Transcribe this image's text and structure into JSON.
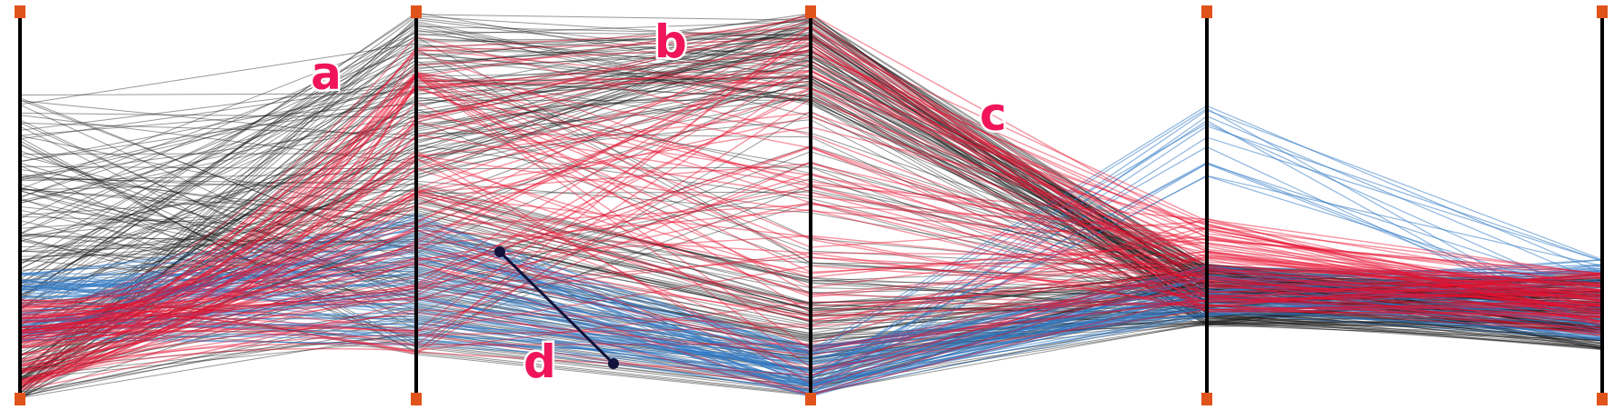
{
  "chart_data": {
    "type": "parallel_coordinates",
    "axes": [
      {
        "label": ""
      },
      {
        "label": ""
      },
      {
        "label": ""
      },
      {
        "label": ""
      },
      {
        "label": ""
      }
    ],
    "series": [
      {
        "color": "#1a1a1a"
      },
      {
        "color": "#e8102e"
      },
      {
        "color": "#2f79c4"
      }
    ],
    "annotations": [
      {
        "text": "a"
      },
      {
        "text": "b"
      },
      {
        "text": "c"
      },
      {
        "text": "d"
      }
    ],
    "axis_color": "#000000",
    "handle_color": "#e0541b",
    "annotation_color": "#f0155a",
    "marker_line_color": "#12123a"
  }
}
